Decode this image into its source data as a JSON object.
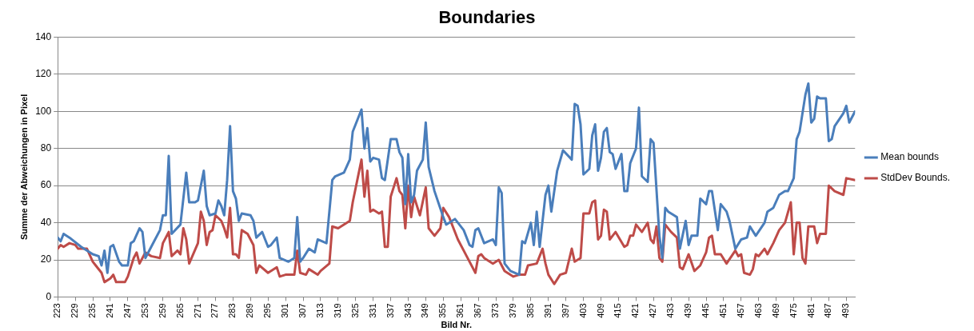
{
  "chart_data": {
    "type": "line",
    "title": "Boundaries",
    "xlabel": "Bild Nr.",
    "ylabel": "Summe der Abweichungen in Pixel",
    "xlim": [
      223,
      496
    ],
    "xticks": [
      223,
      229,
      235,
      241,
      247,
      253,
      259,
      265,
      271,
      277,
      283,
      289,
      295,
      301,
      307,
      313,
      319,
      325,
      331,
      337,
      343,
      349,
      355,
      361,
      367,
      373,
      379,
      385,
      391,
      397,
      403,
      409,
      415,
      421,
      427,
      433,
      439,
      445,
      451,
      457,
      463,
      469,
      475,
      481,
      487,
      493
    ],
    "ylim": [
      0,
      140
    ],
    "yticks": [
      0,
      20,
      40,
      60,
      80,
      100,
      120,
      140
    ],
    "grid": "y",
    "legend": "right",
    "marker": "none",
    "line_style": "solid",
    "series": [
      {
        "name": "Mean bounds",
        "color": "#4a7ebb",
        "x": [
          223,
          224,
          225,
          227,
          231,
          235,
          237,
          238,
          239,
          240,
          241,
          242,
          244,
          245,
          247,
          248,
          249,
          251,
          252,
          253,
          256,
          258,
          259,
          260,
          261,
          262,
          265,
          266,
          267,
          268,
          270,
          271,
          273,
          274,
          275,
          277,
          278,
          279,
          280,
          281,
          282,
          283,
          284,
          285,
          286,
          289,
          290,
          291,
          293,
          295,
          296,
          298,
          299,
          302,
          304,
          305,
          306,
          307,
          309,
          311,
          312,
          315,
          317,
          318,
          321,
          323,
          324,
          327,
          328,
          329,
          330,
          331,
          333,
          334,
          335,
          337,
          339,
          340,
          341,
          342,
          343,
          344,
          345,
          346,
          348,
          349,
          350,
          352,
          355,
          356,
          359,
          362,
          364,
          365,
          366,
          367,
          369,
          372,
          373,
          374,
          375,
          376,
          378,
          381,
          382,
          383,
          385,
          386,
          387,
          388,
          390,
          391,
          392,
          394,
          396,
          399,
          400,
          401,
          402,
          403,
          405,
          406,
          407,
          408,
          409,
          410,
          411,
          412,
          413,
          414,
          416,
          417,
          418,
          419,
          421,
          422,
          423,
          425,
          426,
          427,
          429,
          430,
          431,
          432,
          434,
          435,
          436,
          438,
          439,
          440,
          442,
          443,
          445,
          446,
          447,
          449,
          450,
          452,
          453,
          455,
          457,
          459,
          460,
          462,
          465,
          466,
          468,
          470,
          472,
          473,
          475,
          476,
          477,
          479,
          480,
          481,
          482,
          483,
          484,
          486,
          487,
          488,
          489,
          492,
          493,
          494,
          496
        ],
        "values": [
          32,
          30,
          34,
          32,
          27,
          23,
          22,
          17,
          25,
          13,
          27,
          28,
          19,
          17,
          17,
          29,
          30,
          37,
          35,
          21,
          30,
          36,
          44,
          44,
          76,
          34,
          39,
          53,
          67,
          51,
          51,
          52,
          68,
          49,
          44,
          45,
          52,
          49,
          44,
          63,
          92,
          57,
          53,
          41,
          45,
          44,
          41,
          32,
          35,
          27,
          28,
          32,
          21,
          19,
          21,
          43,
          19,
          21,
          26,
          24,
          31,
          29,
          63,
          65,
          67,
          74,
          89,
          101,
          80,
          91,
          73,
          75,
          74,
          64,
          63,
          85,
          85,
          78,
          75,
          50,
          77,
          51,
          55,
          68,
          74,
          94,
          70,
          57,
          43,
          39,
          42,
          36,
          28,
          27,
          36,
          37,
          29,
          31,
          28,
          59,
          56,
          18,
          14,
          12,
          30,
          29,
          40,
          28,
          46,
          27,
          55,
          60,
          46,
          68,
          79,
          74,
          104,
          103,
          93,
          66,
          69,
          87,
          93,
          68,
          75,
          89,
          91,
          78,
          77,
          69,
          77,
          57,
          57,
          72,
          80,
          102,
          65,
          62,
          85,
          83,
          33,
          21,
          48,
          46,
          44,
          43,
          26,
          41,
          28,
          33,
          33,
          53,
          50,
          57,
          57,
          36,
          50,
          46,
          41,
          26,
          31,
          32,
          38,
          33,
          40,
          46,
          48,
          55,
          57,
          57,
          64,
          85,
          89,
          109,
          115,
          94,
          96,
          108,
          107,
          107,
          84,
          85,
          92,
          99,
          103,
          94,
          100
        ]
      },
      {
        "name": "StdDev Bounds.",
        "color": "#be4b48",
        "x": [
          223,
          224,
          225,
          227,
          229,
          230,
          233,
          235,
          236,
          238,
          239,
          241,
          242,
          243,
          246,
          247,
          249,
          250,
          251,
          253,
          255,
          258,
          259,
          261,
          262,
          264,
          265,
          266,
          267,
          268,
          271,
          272,
          273,
          274,
          275,
          276,
          277,
          279,
          280,
          281,
          282,
          283,
          284,
          285,
          286,
          288,
          290,
          291,
          292,
          295,
          298,
          299,
          301,
          304,
          305,
          306,
          308,
          309,
          312,
          313,
          316,
          317,
          319,
          323,
          324,
          327,
          328,
          329,
          330,
          331,
          333,
          334,
          335,
          336,
          337,
          339,
          340,
          341,
          342,
          343,
          344,
          345,
          347,
          349,
          350,
          352,
          354,
          355,
          357,
          360,
          363,
          366,
          367,
          368,
          369,
          372,
          374,
          376,
          379,
          381,
          383,
          384,
          387,
          389,
          390,
          391,
          393,
          395,
          397,
          399,
          400,
          402,
          403,
          405,
          406,
          407,
          408,
          409,
          410,
          411,
          412,
          414,
          417,
          418,
          419,
          420,
          421,
          423,
          425,
          426,
          427,
          428,
          429,
          430,
          431,
          433,
          435,
          436,
          437,
          439,
          441,
          443,
          445,
          446,
          447,
          448,
          450,
          452,
          455,
          456,
          457,
          458,
          460,
          461,
          462,
          463,
          465,
          466,
          468,
          470,
          472,
          474,
          475,
          476,
          477,
          478,
          479,
          480,
          482,
          483,
          484,
          486,
          487,
          489,
          492,
          493,
          496
        ],
        "values": [
          26,
          28,
          27,
          29,
          28,
          26,
          26,
          19,
          17,
          13,
          8,
          10,
          12,
          8,
          8,
          11,
          21,
          24,
          18,
          24,
          22,
          21,
          29,
          35,
          22,
          25,
          23,
          37,
          31,
          18,
          29,
          46,
          41,
          28,
          35,
          36,
          44,
          41,
          37,
          32,
          48,
          23,
          23,
          21,
          36,
          34,
          28,
          13,
          17,
          13,
          16,
          11,
          12,
          12,
          25,
          13,
          12,
          15,
          12,
          14,
          18,
          38,
          37,
          41,
          51,
          74,
          54,
          68,
          46,
          47,
          45,
          46,
          27,
          27,
          54,
          64,
          57,
          55,
          37,
          60,
          43,
          54,
          44,
          59,
          37,
          33,
          37,
          48,
          43,
          31,
          22,
          13,
          22,
          23,
          21,
          18,
          20,
          14,
          11,
          12,
          12,
          17,
          18,
          26,
          18,
          12,
          7,
          12,
          13,
          26,
          19,
          21,
          45,
          45,
          51,
          52,
          31,
          33,
          47,
          46,
          31,
          35,
          27,
          28,
          33,
          33,
          39,
          35,
          40,
          31,
          29,
          38,
          21,
          19,
          39,
          35,
          32,
          16,
          15,
          23,
          14,
          17,
          24,
          32,
          33,
          23,
          23,
          18,
          25,
          22,
          23,
          13,
          12,
          15,
          23,
          22,
          26,
          23,
          29,
          36,
          40,
          51,
          23,
          40,
          40,
          21,
          18,
          38,
          38,
          29,
          34,
          34,
          60,
          57,
          55,
          64,
          63
        ]
      }
    ]
  }
}
